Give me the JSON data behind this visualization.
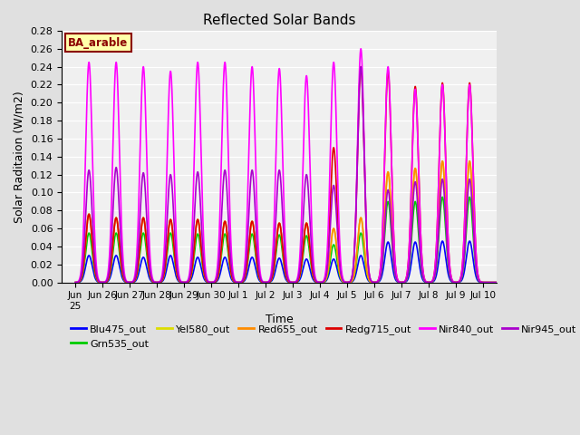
{
  "title": "Reflected Solar Bands",
  "xlabel": "Time",
  "ylabel": "Solar Raditaion (W/m2)",
  "ylim": [
    0.0,
    0.28
  ],
  "yticks": [
    0.0,
    0.02,
    0.04,
    0.06,
    0.08,
    0.1,
    0.12,
    0.14,
    0.16,
    0.18,
    0.2,
    0.22,
    0.24,
    0.26,
    0.28
  ],
  "xtick_labels": [
    "Jun\n25",
    "Jun 26",
    "Jun 27",
    "Jun 28",
    "Jun 29",
    "Jun 30",
    "Jul 1",
    "Jul 2",
    "Jul 3",
    "Jul 4",
    "Jul 5",
    "Jul 6",
    "Jul 7",
    "Jul 8",
    "Jul 9",
    "Jul 10"
  ],
  "xtick_positions": [
    0,
    1,
    2,
    3,
    4,
    5,
    6,
    7,
    8,
    9,
    10,
    11,
    12,
    13,
    14,
    15
  ],
  "band_label": "BA_arable",
  "series_order": [
    "Blu475_out",
    "Grn535_out",
    "Yel580_out",
    "Red655_out",
    "Redg715_out",
    "Nir840_out",
    "Nir945_out"
  ],
  "series": {
    "Blu475_out": {
      "color": "#0000FF",
      "zorder": 2,
      "lw": 1.2
    },
    "Grn535_out": {
      "color": "#00CC00",
      "zorder": 3,
      "lw": 1.2
    },
    "Yel580_out": {
      "color": "#DDDD00",
      "zorder": 4,
      "lw": 1.2
    },
    "Red655_out": {
      "color": "#FF8C00",
      "zorder": 5,
      "lw": 1.2
    },
    "Redg715_out": {
      "color": "#DD0000",
      "zorder": 6,
      "lw": 1.2
    },
    "Nir840_out": {
      "color": "#FF00FF",
      "zorder": 7,
      "lw": 1.2
    },
    "Nir945_out": {
      "color": "#AA00CC",
      "zorder": 8,
      "lw": 1.2
    }
  },
  "peak_heights": {
    "Blu475_out": [
      0.03,
      0.03,
      0.028,
      0.03,
      0.028,
      0.028,
      0.028,
      0.027,
      0.026,
      0.026,
      0.03,
      0.045,
      0.045,
      0.046,
      0.046,
      0.0
    ],
    "Grn535_out": [
      0.055,
      0.055,
      0.055,
      0.055,
      0.054,
      0.054,
      0.054,
      0.053,
      0.052,
      0.042,
      0.055,
      0.09,
      0.09,
      0.095,
      0.095,
      0.0
    ],
    "Yel580_out": [
      0.076,
      0.072,
      0.072,
      0.07,
      0.07,
      0.068,
      0.068,
      0.066,
      0.066,
      0.06,
      0.072,
      0.123,
      0.127,
      0.135,
      0.135,
      0.0
    ],
    "Red655_out": [
      0.076,
      0.072,
      0.072,
      0.07,
      0.07,
      0.068,
      0.068,
      0.066,
      0.066,
      0.06,
      0.072,
      0.123,
      0.127,
      0.135,
      0.135,
      0.0
    ],
    "Redg715_out": [
      0.076,
      0.072,
      0.072,
      0.07,
      0.07,
      0.068,
      0.068,
      0.066,
      0.066,
      0.15,
      0.24,
      0.235,
      0.218,
      0.222,
      0.222,
      0.0
    ],
    "Nir840_out": [
      0.245,
      0.245,
      0.24,
      0.235,
      0.245,
      0.245,
      0.24,
      0.238,
      0.23,
      0.245,
      0.26,
      0.24,
      0.215,
      0.22,
      0.22,
      0.0
    ],
    "Nir945_out": [
      0.125,
      0.128,
      0.122,
      0.12,
      0.123,
      0.125,
      0.125,
      0.125,
      0.12,
      0.108,
      0.24,
      0.103,
      0.112,
      0.115,
      0.115,
      0.0
    ]
  },
  "bg_color": "#E0E0E0",
  "plot_bg_color": "#F0F0F0"
}
